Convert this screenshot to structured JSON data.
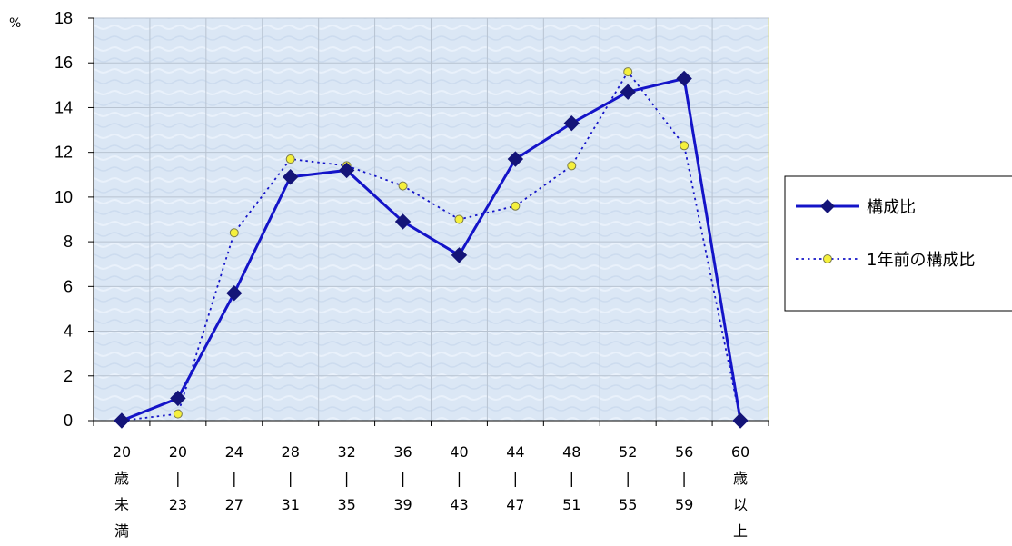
{
  "chart_data": {
    "type": "line",
    "y_unit": "%",
    "ylim": [
      0,
      18
    ],
    "y_ticks": [
      0,
      2,
      4,
      6,
      8,
      10,
      12,
      14,
      16,
      18
    ],
    "grid": true,
    "legend_position": "right",
    "categories": [
      [
        "20",
        "歳",
        "未",
        "満"
      ],
      [
        "20",
        "|",
        "23"
      ],
      [
        "24",
        "|",
        "27"
      ],
      [
        "28",
        "|",
        "31"
      ],
      [
        "32",
        "|",
        "35"
      ],
      [
        "36",
        "|",
        "39"
      ],
      [
        "40",
        "|",
        "43"
      ],
      [
        "44",
        "|",
        "47"
      ],
      [
        "48",
        "|",
        "51"
      ],
      [
        "52",
        "|",
        "55"
      ],
      [
        "56",
        "|",
        "59"
      ],
      [
        "60",
        "歳",
        "以",
        "上"
      ]
    ],
    "series": [
      {
        "name": "構成比",
        "style": "solid",
        "marker": "diamond",
        "color": "#1414c8",
        "values": [
          0,
          1.0,
          5.7,
          10.9,
          11.2,
          8.9,
          7.4,
          11.7,
          13.3,
          14.7,
          15.3,
          0
        ]
      },
      {
        "name": "1年前の構成比",
        "style": "dotted",
        "marker": "circle",
        "color": "#1414c8",
        "marker_fill": "#f5f03c",
        "values": [
          0,
          0.3,
          8.4,
          11.7,
          11.4,
          10.5,
          9.0,
          9.6,
          11.4,
          15.6,
          12.3,
          0
        ]
      }
    ],
    "plot_background": "#dce8f6"
  }
}
